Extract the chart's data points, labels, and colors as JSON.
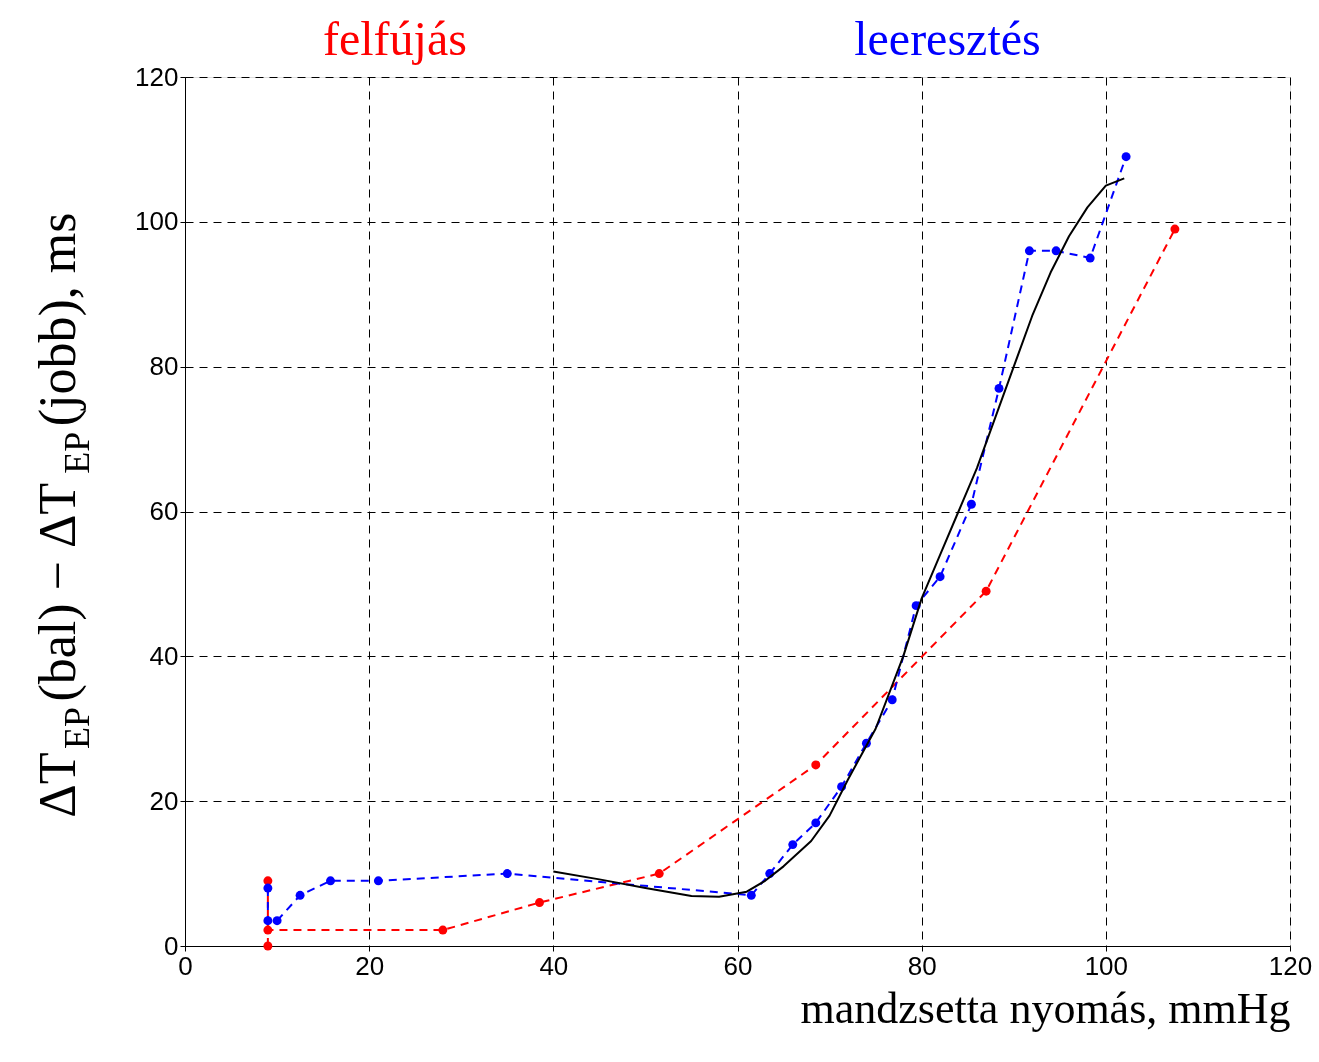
{
  "chart_data": {
    "type": "line",
    "xlabel": "mandzsetta nyomás, mmHg",
    "ylabel": "ΔT$_{EP}$(bal) − ΔT$_{EP}$(jobb), ms",
    "xlim": [
      0,
      120
    ],
    "ylim": [
      0,
      120
    ],
    "xticks": [
      0,
      20,
      40,
      60,
      80,
      100,
      120
    ],
    "yticks": [
      0,
      20,
      40,
      60,
      80,
      100,
      120
    ],
    "grid": true,
    "legend": "top",
    "series": [
      {
        "name": "felfújás",
        "color": "#ff0000",
        "marker": "circle",
        "line_style": "dashed",
        "x": [
          9,
          9,
          9,
          28,
          38.5,
          51.5,
          68.5,
          87,
          107.5
        ],
        "values": [
          0,
          9,
          2.2,
          2.2,
          6,
          10,
          25,
          49,
          99
        ]
      },
      {
        "name": "leeresztés",
        "color": "#0000ff",
        "marker": "circle",
        "line_style": "dashed",
        "x": [
          9,
          9,
          10,
          12.5,
          15.8,
          21,
          35,
          61.5,
          63.5,
          66,
          68.5,
          71.3,
          74,
          76.8,
          79.4,
          82,
          85.4,
          88.4,
          91.7,
          94.6,
          98.3,
          102.2
        ],
        "values": [
          8,
          3.5,
          3.5,
          7,
          9,
          9,
          10,
          7,
          10,
          14,
          17,
          22,
          28,
          34,
          47,
          51,
          61,
          77,
          96,
          96,
          95,
          109
        ]
      },
      {
        "color": "#000000",
        "marker": "none",
        "line_style": "solid",
        "x": [
          40,
          45,
          50,
          55,
          58,
          61,
          63,
          65,
          68,
          70,
          72,
          75,
          78,
          80,
          82,
          84,
          86,
          88,
          90,
          92,
          94,
          96,
          98,
          100,
          102
        ],
        "values": [
          10.3,
          9.2,
          8,
          6.9,
          6.8,
          7.5,
          9,
          11,
          14.5,
          18,
          23,
          30,
          40,
          48,
          54,
          60,
          66,
          73,
          80,
          87,
          93,
          98,
          102,
          105,
          106
        ]
      }
    ]
  }
}
